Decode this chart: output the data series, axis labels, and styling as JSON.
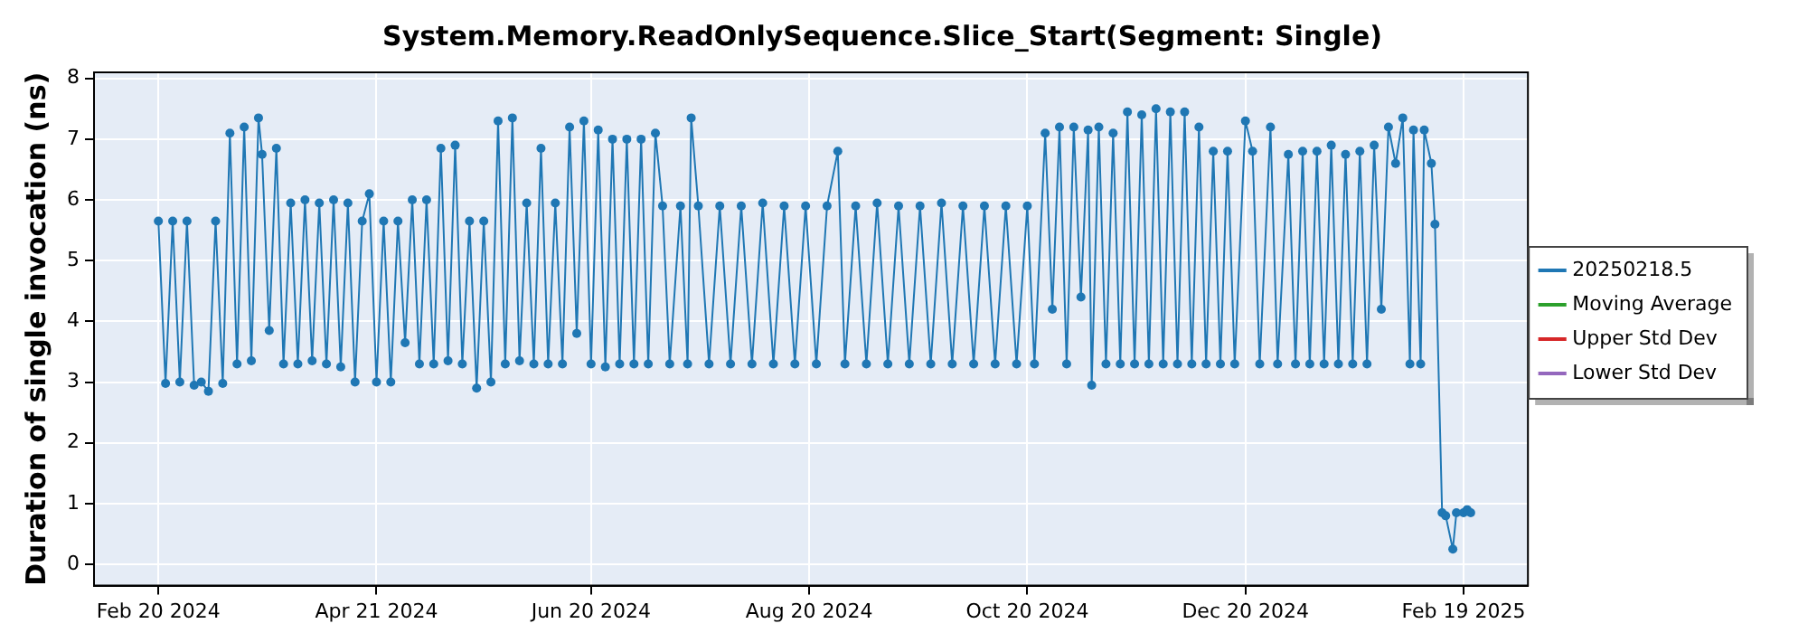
{
  "chart_data": {
    "type": "line",
    "title": "System.Memory.ReadOnlySequence.Slice_Start(Segment: Single)",
    "ylabel": "Duration of single invocation (ns)",
    "x": [
      "2024-02-20",
      "2024-02-22",
      "2024-02-24",
      "2024-02-26",
      "2024-02-28",
      "2024-03-01",
      "2024-03-03",
      "2024-03-05",
      "2024-03-07",
      "2024-03-09",
      "2024-03-11",
      "2024-03-13",
      "2024-03-15",
      "2024-03-17",
      "2024-03-19",
      "2024-03-20",
      "2024-03-22",
      "2024-03-24",
      "2024-03-26",
      "2024-03-28",
      "2024-03-30",
      "2024-04-01",
      "2024-04-03",
      "2024-04-05",
      "2024-04-07",
      "2024-04-09",
      "2024-04-11",
      "2024-04-13",
      "2024-04-15",
      "2024-04-17",
      "2024-04-19",
      "2024-04-21",
      "2024-04-23",
      "2024-04-25",
      "2024-04-27",
      "2024-04-29",
      "2024-05-01",
      "2024-05-03",
      "2024-05-05",
      "2024-05-07",
      "2024-05-09",
      "2024-05-11",
      "2024-05-13",
      "2024-05-15",
      "2024-05-17",
      "2024-05-19",
      "2024-05-21",
      "2024-05-23",
      "2024-05-25",
      "2024-05-27",
      "2024-05-29",
      "2024-05-31",
      "2024-06-02",
      "2024-06-04",
      "2024-06-06",
      "2024-06-08",
      "2024-06-10",
      "2024-06-12",
      "2024-06-14",
      "2024-06-16",
      "2024-06-18",
      "2024-06-20",
      "2024-06-22",
      "2024-06-24",
      "2024-06-26",
      "2024-06-28",
      "2024-06-30",
      "2024-07-02",
      "2024-07-04",
      "2024-07-06",
      "2024-07-08",
      "2024-07-10",
      "2024-07-12",
      "2024-07-15",
      "2024-07-17",
      "2024-07-18",
      "2024-07-20",
      "2024-07-23",
      "2024-07-26",
      "2024-07-29",
      "2024-08-01",
      "2024-08-04",
      "2024-08-07",
      "2024-08-10",
      "2024-08-13",
      "2024-08-16",
      "2024-08-19",
      "2024-08-22",
      "2024-08-25",
      "2024-08-28",
      "2024-08-30",
      "2024-09-02",
      "2024-09-05",
      "2024-09-08",
      "2024-09-11",
      "2024-09-14",
      "2024-09-17",
      "2024-09-20",
      "2024-09-23",
      "2024-09-26",
      "2024-09-29",
      "2024-10-02",
      "2024-10-05",
      "2024-10-08",
      "2024-10-11",
      "2024-10-14",
      "2024-10-17",
      "2024-10-20",
      "2024-10-22",
      "2024-10-25",
      "2024-10-27",
      "2024-10-29",
      "2024-10-31",
      "2024-11-02",
      "2024-11-04",
      "2024-11-06",
      "2024-11-07",
      "2024-11-09",
      "2024-11-11",
      "2024-11-13",
      "2024-11-15",
      "2024-11-17",
      "2024-11-19",
      "2024-11-21",
      "2024-11-23",
      "2024-11-25",
      "2024-11-27",
      "2024-11-29",
      "2024-12-01",
      "2024-12-03",
      "2024-12-05",
      "2024-12-07",
      "2024-12-09",
      "2024-12-11",
      "2024-12-13",
      "2024-12-15",
      "2024-12-17",
      "2024-12-20",
      "2024-12-22",
      "2024-12-24",
      "2024-12-27",
      "2024-12-29",
      "2025-01-01",
      "2025-01-03",
      "2025-01-05",
      "2025-01-07",
      "2025-01-09",
      "2025-01-11",
      "2025-01-13",
      "2025-01-15",
      "2025-01-17",
      "2025-01-19",
      "2025-01-21",
      "2025-01-23",
      "2025-01-25",
      "2025-01-27",
      "2025-01-29",
      "2025-01-31",
      "2025-02-02",
      "2025-02-04",
      "2025-02-05",
      "2025-02-07",
      "2025-02-08",
      "2025-02-10",
      "2025-02-11",
      "2025-02-13",
      "2025-02-14",
      "2025-02-16",
      "2025-02-17",
      "2025-02-19",
      "2025-02-20",
      "2025-02-21"
    ],
    "series": [
      {
        "name": "20250218.5",
        "color": "#1f77b4",
        "values": [
          5.65,
          2.98,
          5.65,
          3.0,
          5.65,
          2.95,
          3.0,
          2.85,
          5.65,
          2.98,
          7.1,
          3.3,
          7.2,
          3.35,
          7.35,
          6.75,
          3.85,
          6.85,
          3.3,
          5.95,
          3.3,
          6.0,
          3.35,
          5.95,
          3.3,
          6.0,
          3.25,
          5.95,
          3.0,
          5.65,
          6.1,
          3.0,
          5.65,
          3.0,
          5.65,
          3.65,
          6.0,
          3.3,
          6.0,
          3.3,
          6.85,
          3.35,
          6.9,
          3.3,
          5.65,
          2.9,
          5.65,
          3.0,
          7.3,
          3.3,
          7.35,
          3.35,
          5.95,
          3.3,
          6.85,
          3.3,
          5.95,
          3.3,
          7.2,
          3.8,
          7.3,
          3.3,
          7.15,
          3.25,
          7.0,
          3.3,
          7.0,
          3.3,
          7.0,
          3.3,
          7.1,
          5.9,
          3.3,
          5.9,
          3.3,
          7.35,
          5.9,
          3.3,
          5.9,
          3.3,
          5.9,
          3.3,
          5.95,
          3.3,
          5.9,
          3.3,
          5.9,
          3.3,
          5.9,
          6.8,
          3.3,
          5.9,
          3.3,
          5.95,
          3.3,
          5.9,
          3.3,
          5.9,
          3.3,
          5.95,
          3.3,
          5.9,
          3.3,
          5.9,
          3.3,
          5.9,
          3.3,
          5.9,
          3.3,
          7.1,
          4.2,
          7.2,
          3.3,
          7.2,
          4.4,
          7.15,
          2.95,
          7.2,
          3.3,
          7.1,
          3.3,
          7.45,
          3.3,
          7.4,
          3.3,
          7.5,
          3.3,
          7.45,
          3.3,
          7.45,
          3.3,
          7.2,
          3.3,
          6.8,
          3.3,
          6.8,
          3.3,
          7.3,
          6.8,
          3.3,
          7.2,
          3.3,
          6.75,
          3.3,
          6.8,
          3.3,
          6.8,
          3.3,
          6.9,
          3.3,
          6.75,
          3.3,
          6.8,
          3.3,
          6.9,
          4.2,
          7.2,
          6.6,
          7.35,
          3.3,
          7.15,
          3.3,
          7.15,
          6.6,
          5.6,
          0.85,
          0.8,
          0.25,
          0.85,
          0.85,
          0.9,
          0.85
        ]
      },
      {
        "name": "Moving Average",
        "color": "#2ca02c",
        "values": [
          null,
          null,
          null,
          null,
          null,
          null,
          null,
          null,
          null,
          null,
          null,
          null,
          null,
          null,
          null,
          null,
          null,
          null,
          null,
          null,
          null,
          null,
          null,
          null,
          null,
          null,
          null,
          null,
          null,
          null,
          null,
          null,
          null,
          null,
          null,
          null,
          null,
          null,
          null,
          null,
          null,
          null,
          null,
          null,
          null,
          null,
          null,
          null,
          null,
          null,
          null,
          null,
          null,
          null,
          null,
          null,
          null,
          null,
          null,
          null,
          null,
          null,
          null,
          null,
          null,
          null,
          null,
          null,
          null,
          null,
          null,
          null,
          null,
          null,
          null,
          null,
          null,
          null,
          null,
          null,
          null,
          null,
          null,
          null,
          null,
          null,
          null,
          null,
          null,
          null,
          null,
          null,
          null,
          null,
          null,
          null,
          null,
          null,
          null,
          null,
          null,
          null,
          null,
          null,
          null,
          null,
          null,
          null,
          null,
          null,
          null,
          null,
          null,
          null,
          null,
          null,
          null,
          null,
          null,
          null,
          null,
          null,
          null,
          null,
          null,
          null,
          null,
          null,
          null,
          null,
          null,
          null,
          null,
          null,
          null,
          null,
          null,
          null,
          null,
          null,
          null,
          null,
          null,
          null,
          null,
          null,
          null,
          null,
          null,
          null,
          null,
          null,
          null,
          null,
          null,
          null,
          null,
          null,
          null,
          null,
          null,
          null,
          null,
          null,
          null,
          null,
          null,
          null,
          null,
          null,
          null,
          null
        ]
      },
      {
        "name": "Upper Std Dev",
        "color": "#d62728",
        "values": [
          null,
          null,
          null,
          null,
          null,
          null,
          null,
          null,
          null,
          null,
          null,
          null,
          null,
          null,
          null,
          null,
          null,
          null,
          null,
          null,
          null,
          null,
          null,
          null,
          null,
          null,
          null,
          null,
          null,
          null,
          null,
          null,
          null,
          null,
          null,
          null,
          null,
          null,
          null,
          null,
          null,
          null,
          null,
          null,
          null,
          null,
          null,
          null,
          null,
          null,
          null,
          null,
          null,
          null,
          null,
          null,
          null,
          null,
          null,
          null,
          null,
          null,
          null,
          null,
          null,
          null,
          null,
          null,
          null,
          null,
          null,
          null,
          null,
          null,
          null,
          null,
          null,
          null,
          null,
          null,
          null,
          null,
          null,
          null,
          null,
          null,
          null,
          null,
          null,
          null,
          null,
          null,
          null,
          null,
          null,
          null,
          null,
          null,
          null,
          null,
          null,
          null,
          null,
          null,
          null,
          null,
          null,
          null,
          null,
          null,
          null,
          null,
          null,
          null,
          null,
          null,
          null,
          null,
          null,
          null,
          null,
          null,
          null,
          null,
          null,
          null,
          null,
          null,
          null,
          null,
          null,
          null,
          null,
          null,
          null,
          null,
          null,
          null,
          null,
          null,
          null,
          null,
          null,
          null,
          null,
          null,
          null,
          null,
          null,
          null,
          null,
          null,
          null,
          null,
          null,
          null,
          null,
          null,
          null,
          null,
          null,
          null,
          null,
          null,
          null,
          null,
          null,
          null,
          null,
          null,
          null,
          null
        ]
      },
      {
        "name": "Lower Std Dev",
        "color": "#9467bd",
        "values": [
          null,
          null,
          null,
          null,
          null,
          null,
          null,
          null,
          null,
          null,
          null,
          null,
          null,
          null,
          null,
          null,
          null,
          null,
          null,
          null,
          null,
          null,
          null,
          null,
          null,
          null,
          null,
          null,
          null,
          null,
          null,
          null,
          null,
          null,
          null,
          null,
          null,
          null,
          null,
          null,
          null,
          null,
          null,
          null,
          null,
          null,
          null,
          null,
          null,
          null,
          null,
          null,
          null,
          null,
          null,
          null,
          null,
          null,
          null,
          null,
          null,
          null,
          null,
          null,
          null,
          null,
          null,
          null,
          null,
          null,
          null,
          null,
          null,
          null,
          null,
          null,
          null,
          null,
          null,
          null,
          null,
          null,
          null,
          null,
          null,
          null,
          null,
          null,
          null,
          null,
          null,
          null,
          null,
          null,
          null,
          null,
          null,
          null,
          null,
          null,
          null,
          null,
          null,
          null,
          null,
          null,
          null,
          null,
          null,
          null,
          null,
          null,
          null,
          null,
          null,
          null,
          null,
          null,
          null,
          null,
          null,
          null,
          null,
          null,
          null,
          null,
          null,
          null,
          null,
          null,
          null,
          null,
          null,
          null,
          null,
          null,
          null,
          null,
          null,
          null,
          null,
          null,
          null,
          null,
          null,
          null,
          null,
          null,
          null,
          null,
          null,
          null,
          null,
          null,
          null,
          null,
          null,
          null,
          null,
          null,
          null,
          null,
          null,
          null,
          null,
          null,
          null,
          null,
          null,
          null,
          null,
          null
        ]
      }
    ],
    "xlim": [
      "2024-02-02",
      "2025-03-09"
    ],
    "xticks": [
      {
        "value": "2024-02-20",
        "label": "Feb 20 2024"
      },
      {
        "value": "2024-04-21",
        "label": "Apr 21 2024"
      },
      {
        "value": "2024-06-20",
        "label": "Jun 20 2024"
      },
      {
        "value": "2024-08-20",
        "label": "Aug 20 2024"
      },
      {
        "value": "2024-10-20",
        "label": "Oct 20 2024"
      },
      {
        "value": "2024-12-20",
        "label": "Dec 20 2024"
      },
      {
        "value": "2025-02-19",
        "label": "Feb 19 2025"
      }
    ],
    "ylim": [
      -0.35,
      8.1
    ],
    "yticks": [
      0,
      1,
      2,
      3,
      4,
      5,
      6,
      7,
      8
    ],
    "grid": true,
    "legend": "right",
    "marker": "circle",
    "line_style": "solid"
  }
}
